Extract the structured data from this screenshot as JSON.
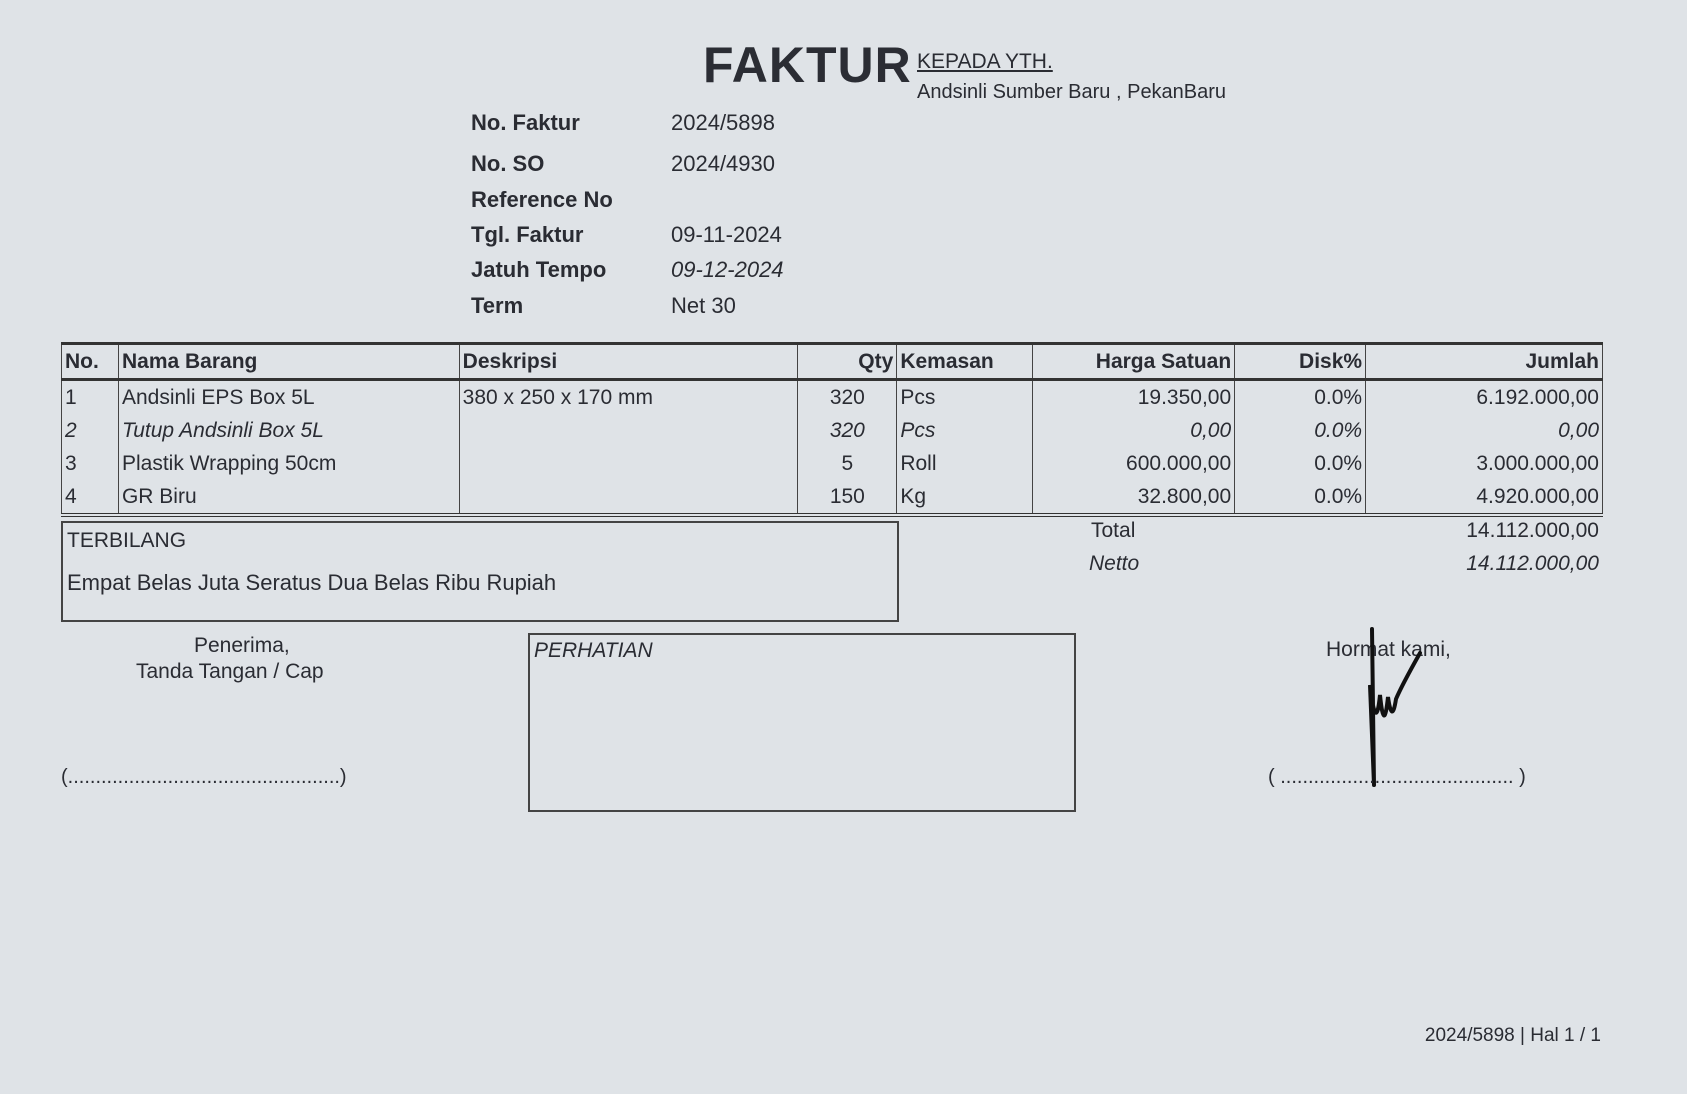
{
  "header": {
    "title": "FAKTUR",
    "recipient_label": "KEPADA YTH.",
    "recipient": "Andsinli Sumber Baru , PekanBaru"
  },
  "meta": [
    {
      "label": "No. Faktur",
      "value": "2024/5898"
    },
    {
      "label": "No. SO",
      "value": "2024/4930"
    },
    {
      "label": "Reference No",
      "value": ""
    },
    {
      "label": "Tgl. Faktur",
      "value": "09-11-2024"
    },
    {
      "label": "Jatuh Tempo",
      "value": "09-12-2024"
    },
    {
      "label": "Term",
      "value": "Net 30"
    }
  ],
  "table": {
    "columns": [
      "No.",
      "Nama Barang",
      "Deskripsi",
      "Qty",
      "Kemasan",
      "Harga Satuan",
      "Disk%",
      "Jumlah"
    ],
    "rows": [
      [
        "1",
        "Andsinli EPS Box 5L",
        "380 x 250 x 170 mm",
        "320",
        "Pcs",
        "19.350,00",
        "0.0%",
        "6.192.000,00"
      ],
      [
        "2",
        "Tutup Andsinli Box 5L",
        "",
        "320",
        "Pcs",
        "0,00",
        "0.0%",
        "0,00"
      ],
      [
        "3",
        "Plastik Wrapping 50cm",
        "",
        "5",
        "Roll",
        "600.000,00",
        "0.0%",
        "3.000.000,00"
      ],
      [
        "4",
        "GR Biru",
        "",
        "150",
        "Kg",
        "32.800,00",
        "0.0%",
        "4.920.000,00"
      ]
    ]
  },
  "terbilang": {
    "label": "TERBILANG",
    "text": "Empat Belas Juta Seratus Dua Belas Ribu Rupiah"
  },
  "totals": {
    "total_label": "Total",
    "total_value": "14.112.000,00",
    "netto_label": "Netto",
    "netto_value": "14.112.000,00"
  },
  "footer": {
    "receiver_line1": "Penerima,",
    "receiver_line2": "Tanda Tangan / Cap",
    "receiver_sign": "(.................................................)",
    "notice_label": "PERHATIAN",
    "regards": "Hormat kami,",
    "sender_sign": "( .......................................... )",
    "page_info": "2024/5898 | Hal 1 / 1"
  }
}
